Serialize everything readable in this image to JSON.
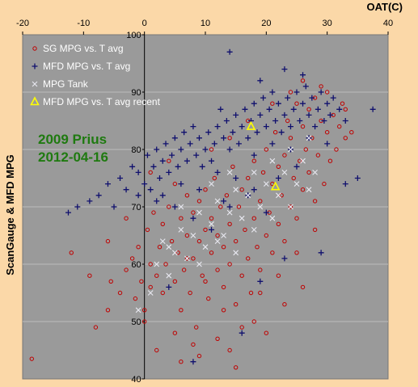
{
  "chart_data": {
    "type": "scatter",
    "xlabel": "OAT(C)",
    "ylabel": "ScanGauge & MFD MPG",
    "xlim": [
      -20,
      40
    ],
    "ylim": [
      40,
      100
    ],
    "x_ticks": [
      "-20",
      "-10",
      "0",
      "10",
      "20",
      "30",
      "40"
    ],
    "y_ticks": [
      "40",
      "50",
      "60",
      "70",
      "80",
      "90",
      "100"
    ],
    "grid": "horizontal",
    "plot_background": "#9a9a9a",
    "annotation": [
      "2009 Prius",
      "2012-04-16"
    ],
    "annotation_color": "#1f7a10",
    "legend_position": "top-left",
    "series": [
      {
        "name": "SG MPG vs. T avg",
        "marker": "circle",
        "color": "#c00000",
        "points": [
          [
            -18.5,
            43.5
          ],
          [
            -8,
            49
          ],
          [
            -6,
            52
          ],
          [
            -5.5,
            57
          ],
          [
            -4,
            55
          ],
          [
            -3,
            59
          ],
          [
            -2,
            61
          ],
          [
            -1.5,
            54
          ],
          [
            -1,
            63
          ],
          [
            -0.5,
            57
          ],
          [
            0,
            50
          ],
          [
            0,
            52
          ],
          [
            0.5,
            66
          ],
          [
            1,
            56
          ],
          [
            1,
            60
          ],
          [
            1.5,
            69
          ],
          [
            2,
            58
          ],
          [
            2.5,
            63
          ],
          [
            3,
            67
          ],
          [
            3,
            55
          ],
          [
            3.5,
            60
          ],
          [
            4,
            70
          ],
          [
            4.5,
            64
          ],
          [
            5,
            57
          ],
          [
            5,
            74
          ],
          [
            5.5,
            62
          ],
          [
            6,
            52
          ],
          [
            6,
            68
          ],
          [
            6.5,
            59
          ],
          [
            7,
            65
          ],
          [
            7,
            72
          ],
          [
            7.5,
            55
          ],
          [
            8,
            61
          ],
          [
            8,
            69
          ],
          [
            8.5,
            49
          ],
          [
            9,
            64
          ],
          [
            9,
            71
          ],
          [
            9.5,
            58
          ],
          [
            10,
            66
          ],
          [
            10,
            73
          ],
          [
            10.5,
            54
          ],
          [
            11,
            62
          ],
          [
            11,
            68
          ],
          [
            11.5,
            75
          ],
          [
            12,
            59
          ],
          [
            12,
            65
          ],
          [
            12.5,
            70
          ],
          [
            13,
            56
          ],
          [
            13,
            63
          ],
          [
            13.5,
            72
          ],
          [
            14,
            60
          ],
          [
            14,
            67
          ],
          [
            14.5,
            77
          ],
          [
            15,
            53
          ],
          [
            15,
            64
          ],
          [
            15.5,
            70
          ],
          [
            16,
            58
          ],
          [
            16,
            73
          ],
          [
            16.5,
            66
          ],
          [
            17,
            61
          ],
          [
            17,
            75
          ],
          [
            17.5,
            55
          ],
          [
            18,
            68
          ],
          [
            18,
            78
          ],
          [
            18.5,
            63
          ],
          [
            19,
            71
          ],
          [
            19,
            59
          ],
          [
            19.5,
            76
          ],
          [
            20,
            65
          ],
          [
            20,
            80
          ],
          [
            20.5,
            69
          ],
          [
            21,
            62
          ],
          [
            21,
            74
          ],
          [
            21.5,
            83
          ],
          [
            22,
            67
          ],
          [
            22,
            77
          ],
          [
            22.5,
            72
          ],
          [
            23,
            79
          ],
          [
            23,
            64
          ],
          [
            23.5,
            85
          ],
          [
            24,
            70
          ],
          [
            24,
            82
          ],
          [
            24.5,
            75
          ],
          [
            25,
            88
          ],
          [
            25,
            68
          ],
          [
            25.5,
            78
          ],
          [
            26,
            84
          ],
          [
            26,
            73
          ],
          [
            26.5,
            80
          ],
          [
            27,
            87
          ],
          [
            27,
            76
          ],
          [
            27.5,
            82
          ],
          [
            28,
            71
          ],
          [
            28,
            89
          ],
          [
            28.5,
            79
          ],
          [
            29,
            85
          ],
          [
            29.5,
            74
          ],
          [
            30,
            83
          ],
          [
            30.5,
            78
          ],
          [
            31,
            86
          ],
          [
            31.5,
            80
          ],
          [
            32,
            84
          ],
          [
            32.5,
            88
          ],
          [
            33,
            82
          ],
          [
            2,
            45
          ],
          [
            5,
            48
          ],
          [
            8,
            46
          ],
          [
            12,
            47
          ],
          [
            15,
            42
          ],
          [
            18,
            50
          ],
          [
            -3,
            68
          ],
          [
            -6,
            64
          ],
          [
            -9,
            58
          ],
          [
            -12,
            62
          ],
          [
            1,
            76
          ],
          [
            4,
            78
          ],
          [
            7,
            61
          ],
          [
            10,
            57
          ],
          [
            13,
            52
          ],
          [
            16,
            49
          ],
          [
            19,
            55
          ],
          [
            22,
            58
          ],
          [
            25,
            62
          ],
          [
            28,
            66
          ],
          [
            6,
            43
          ],
          [
            9,
            44
          ],
          [
            14,
            45
          ],
          [
            20,
            48
          ],
          [
            23,
            53
          ],
          [
            26,
            56
          ],
          [
            24,
            90
          ],
          [
            26,
            92
          ],
          [
            29,
            91
          ],
          [
            33,
            87
          ],
          [
            34,
            83
          ],
          [
            30,
            90
          ],
          [
            11,
            80
          ],
          [
            14,
            82
          ],
          [
            17,
            85
          ],
          [
            21,
            88
          ]
        ]
      },
      {
        "name": "MFD MPG vs. T avg",
        "marker": "plus",
        "color": "#10106e",
        "points": [
          [
            -12.5,
            69
          ],
          [
            -11,
            70
          ],
          [
            -9,
            71
          ],
          [
            -7.5,
            72
          ],
          [
            -6,
            74
          ],
          [
            -5,
            70
          ],
          [
            -4,
            75
          ],
          [
            -3,
            73
          ],
          [
            -2,
            77
          ],
          [
            -1,
            76
          ],
          [
            0,
            74
          ],
          [
            0.5,
            79
          ],
          [
            1,
            73
          ],
          [
            1.5,
            77
          ],
          [
            2,
            80
          ],
          [
            2.5,
            75
          ],
          [
            3,
            78
          ],
          [
            3.5,
            81
          ],
          [
            4,
            76
          ],
          [
            4.5,
            79
          ],
          [
            5,
            82
          ],
          [
            5.5,
            77
          ],
          [
            6,
            80
          ],
          [
            6.5,
            83
          ],
          [
            7,
            78
          ],
          [
            7.5,
            81
          ],
          [
            8,
            84
          ],
          [
            8.5,
            79
          ],
          [
            9,
            82
          ],
          [
            9.5,
            77
          ],
          [
            10,
            80
          ],
          [
            10.5,
            83
          ],
          [
            11,
            78
          ],
          [
            11.5,
            81
          ],
          [
            12,
            84
          ],
          [
            12.5,
            87
          ],
          [
            13,
            82
          ],
          [
            13.5,
            85
          ],
          [
            14,
            80
          ],
          [
            14.5,
            83
          ],
          [
            15,
            86
          ],
          [
            15.5,
            81
          ],
          [
            16,
            84
          ],
          [
            16.5,
            87
          ],
          [
            17,
            82
          ],
          [
            17.5,
            85
          ],
          [
            18,
            88
          ],
          [
            18.5,
            83
          ],
          [
            19,
            86
          ],
          [
            19.5,
            89
          ],
          [
            20,
            84
          ],
          [
            20.5,
            87
          ],
          [
            21,
            90
          ],
          [
            21.5,
            85
          ],
          [
            22,
            88
          ],
          [
            22.5,
            83
          ],
          [
            23,
            86
          ],
          [
            23.5,
            89
          ],
          [
            24,
            84
          ],
          [
            24.5,
            87
          ],
          [
            25,
            90
          ],
          [
            25.5,
            85
          ],
          [
            26,
            88
          ],
          [
            26.5,
            91
          ],
          [
            27,
            86
          ],
          [
            27.5,
            89
          ],
          [
            28,
            84
          ],
          [
            28.5,
            87
          ],
          [
            29,
            90
          ],
          [
            29.5,
            85
          ],
          [
            30,
            88
          ],
          [
            30.5,
            86
          ],
          [
            31,
            89
          ],
          [
            32,
            87
          ],
          [
            33,
            85
          ],
          [
            37.5,
            87
          ],
          [
            14,
            97
          ],
          [
            23,
            94
          ],
          [
            26,
            93
          ],
          [
            19,
            92
          ],
          [
            3,
            72
          ],
          [
            6,
            74
          ],
          [
            9,
            73
          ],
          [
            12,
            76
          ],
          [
            15,
            75
          ],
          [
            18,
            79
          ],
          [
            21,
            81
          ],
          [
            24,
            80
          ],
          [
            27,
            82
          ],
          [
            30,
            81
          ],
          [
            8,
            68
          ],
          [
            11,
            66
          ],
          [
            14,
            70
          ],
          [
            17,
            72
          ],
          [
            20,
            69
          ],
          [
            5,
            70
          ],
          [
            2,
            71
          ],
          [
            -1,
            72
          ],
          [
            22,
            75
          ],
          [
            25,
            77
          ],
          [
            23,
            61
          ],
          [
            19,
            57
          ],
          [
            16,
            48
          ],
          [
            8,
            43
          ],
          [
            4,
            56
          ],
          [
            29,
            62
          ],
          [
            33,
            74
          ],
          [
            35,
            75
          ],
          [
            18,
            73
          ],
          [
            13,
            71
          ]
        ]
      },
      {
        "name": "MPG Tank",
        "marker": "x",
        "color": "#e8e8f0",
        "points": [
          [
            -1,
            52
          ],
          [
            1,
            55
          ],
          [
            2,
            60
          ],
          [
            3,
            64
          ],
          [
            4,
            58
          ],
          [
            5,
            62
          ],
          [
            6,
            66
          ],
          [
            7,
            61
          ],
          [
            8,
            65
          ],
          [
            9,
            69
          ],
          [
            10,
            63
          ],
          [
            11,
            67
          ],
          [
            12,
            71
          ],
          [
            13,
            65
          ],
          [
            14,
            69
          ],
          [
            15,
            73
          ],
          [
            16,
            68
          ],
          [
            17,
            72
          ],
          [
            18,
            76
          ],
          [
            19,
            70
          ],
          [
            20,
            74
          ],
          [
            21,
            78
          ],
          [
            22,
            72
          ],
          [
            23,
            76
          ],
          [
            24,
            80
          ],
          [
            25,
            74
          ],
          [
            26,
            78
          ],
          [
            27,
            82
          ],
          [
            28,
            76
          ],
          [
            4,
            63
          ],
          [
            6,
            70
          ],
          [
            9,
            60
          ],
          [
            12,
            64
          ],
          [
            15,
            62
          ],
          [
            18,
            66
          ],
          [
            21,
            68
          ],
          [
            24,
            70
          ],
          [
            27,
            73
          ],
          [
            14,
            76
          ],
          [
            11,
            74
          ]
        ]
      },
      {
        "name": "MFD MPG vs. T avg recent",
        "marker": "triangle",
        "color": "#ffff00",
        "points": [
          [
            17.5,
            84
          ],
          [
            21.5,
            73.5
          ]
        ]
      }
    ]
  }
}
